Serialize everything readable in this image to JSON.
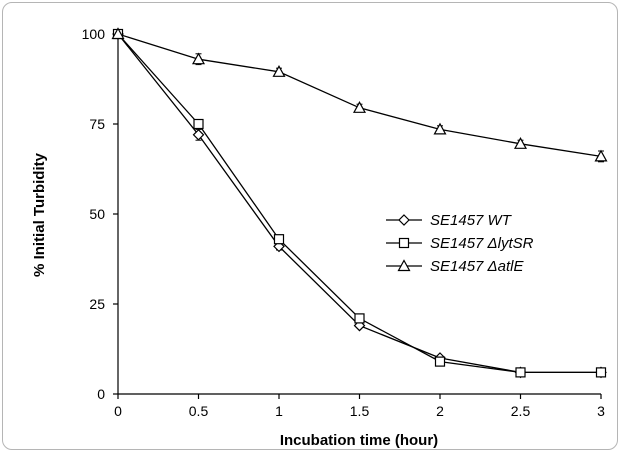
{
  "chart_data": {
    "type": "line",
    "title": "",
    "xlabel": "Incubation time (hour)",
    "ylabel": "% Initial Turbidity",
    "x": [
      0,
      0.5,
      1,
      1.5,
      2,
      2.5,
      3
    ],
    "x_tick_labels": [
      "0",
      "0.5",
      "1",
      "1.5",
      "2",
      "2.5",
      "3"
    ],
    "y_tick_labels": [
      "0",
      "25",
      "50",
      "75",
      "100"
    ],
    "xlim": [
      0,
      3
    ],
    "ylim": [
      0,
      100
    ],
    "grid": false,
    "legend_position": "middle-right",
    "series": [
      {
        "name": "SE1457 WT",
        "marker": "diamond",
        "values": [
          100,
          72,
          41,
          19,
          10,
          6,
          6
        ],
        "errors": [
          0,
          1.5,
          1,
          0.5,
          0.5,
          0.3,
          0.3
        ]
      },
      {
        "name": "SE1457 ΔlytSR",
        "marker": "square",
        "values": [
          100,
          75,
          43,
          21,
          9,
          6,
          6
        ],
        "errors": [
          0,
          1,
          1,
          0.5,
          0.5,
          0.3,
          0.3
        ]
      },
      {
        "name": "SE1457 ΔatlE",
        "marker": "triangle",
        "values": [
          100,
          93,
          89.5,
          79.5,
          73.5,
          69.5,
          66
        ],
        "errors": [
          0,
          1.5,
          1,
          1,
          1,
          1,
          1.5
        ]
      }
    ]
  }
}
